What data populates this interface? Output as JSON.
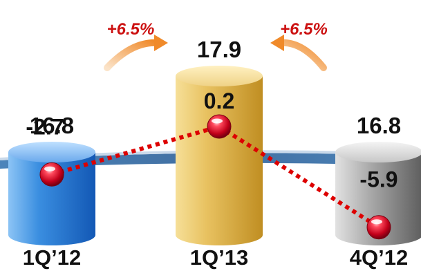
{
  "chart_data": {
    "type": "bar",
    "categories": [
      "1Q’12",
      "1Q’13",
      "4Q’12"
    ],
    "bar_values": [
      16.8,
      17.9,
      16.8
    ],
    "bar_value_labels": [
      "16.8",
      "17.9",
      "16.8"
    ],
    "bar_colors": [
      "#3a8ee0",
      "#e8c261",
      "#a9a9a9"
    ],
    "line_values": [
      -2.7,
      0.2,
      -5.9
    ],
    "line_value_labels": [
      "-2.7",
      "0.2",
      "-5.9"
    ],
    "line_color": "#dd0000",
    "line_style": "dotted",
    "marker": "red-sphere",
    "growth_annotations": [
      {
        "label": "+6.5%",
        "from": "1Q’12",
        "to": "1Q’13",
        "color": "#cc1111"
      },
      {
        "label": "+6.5%",
        "from": "4Q’12",
        "to": "1Q’13",
        "color": "#cc1111"
      }
    ],
    "bar_ylim": [
      0,
      20
    ],
    "line_ylim": [
      -7,
      2
    ],
    "axes_visible": false,
    "grid": false,
    "legend": "none"
  }
}
